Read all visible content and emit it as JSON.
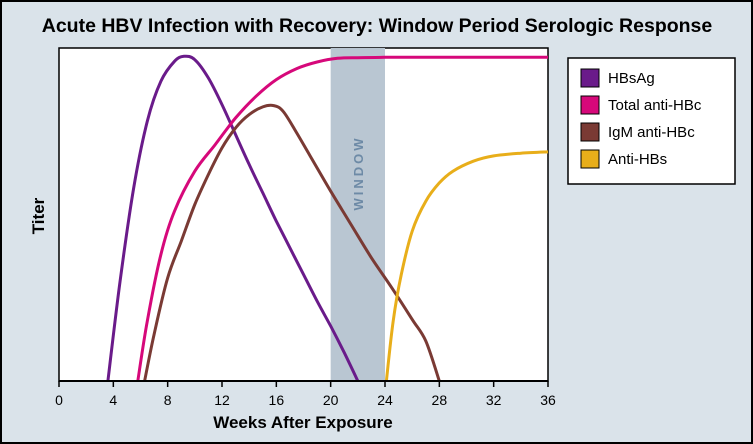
{
  "chart_data": {
    "type": "line",
    "title": "Acute HBV Infection with Recovery: Window Period Serologic Response",
    "xlabel": "Weeks After Exposure",
    "ylabel": "Titer",
    "xlim": [
      0,
      36
    ],
    "ylim": [
      0,
      100
    ],
    "xticks": [
      0,
      4,
      8,
      12,
      16,
      20,
      24,
      28,
      32,
      36
    ],
    "grid": false,
    "legend_position": "top-right",
    "window_band": {
      "label": "WINDOW",
      "x": [
        20,
        24
      ],
      "color": "#b9c6d2"
    },
    "series": [
      {
        "name": "HBsAg",
        "color": "#6a1b8a",
        "points": [
          [
            3.6,
            0
          ],
          [
            4.5,
            30
          ],
          [
            5.5,
            58
          ],
          [
            6.5,
            78
          ],
          [
            7.5,
            90
          ],
          [
            8.5,
            96
          ],
          [
            9.2,
            97.5
          ],
          [
            10,
            96.5
          ],
          [
            11,
            91
          ],
          [
            12,
            83
          ],
          [
            13,
            74
          ],
          [
            14,
            65
          ],
          [
            15,
            56.5
          ],
          [
            16,
            48
          ],
          [
            17,
            40
          ],
          [
            18,
            32
          ],
          [
            19,
            24
          ],
          [
            20,
            16.5
          ],
          [
            21,
            8.5
          ],
          [
            22,
            0
          ]
        ]
      },
      {
        "name": "Total anti-HBc",
        "color": "#d6087a",
        "points": [
          [
            5.8,
            0
          ],
          [
            6.5,
            18
          ],
          [
            7.5,
            38
          ],
          [
            8.5,
            51
          ],
          [
            10,
            63
          ],
          [
            11.5,
            71
          ],
          [
            13,
            79
          ],
          [
            14.5,
            85.5
          ],
          [
            16,
            90.5
          ],
          [
            17.5,
            93.8
          ],
          [
            19,
            95.8
          ],
          [
            20.5,
            96.9
          ],
          [
            22,
            97.1
          ],
          [
            24,
            97.2
          ],
          [
            28,
            97.2
          ],
          [
            32,
            97.2
          ],
          [
            36,
            97.2
          ]
        ]
      },
      {
        "name": "IgM anti-HBc",
        "color": "#7a3a34",
        "points": [
          [
            6.3,
            0
          ],
          [
            7,
            14
          ],
          [
            8,
            31
          ],
          [
            9,
            42
          ],
          [
            10,
            53
          ],
          [
            11,
            62
          ],
          [
            12,
            70
          ],
          [
            13,
            76
          ],
          [
            14,
            80
          ],
          [
            15,
            82.3
          ],
          [
            15.8,
            82.7
          ],
          [
            16.5,
            81
          ],
          [
            17.5,
            74.5
          ],
          [
            18.5,
            67.5
          ],
          [
            20,
            57
          ],
          [
            21.5,
            47
          ],
          [
            23,
            37
          ],
          [
            24.5,
            28
          ],
          [
            26,
            18.5
          ],
          [
            27,
            12
          ],
          [
            28,
            0
          ]
        ]
      },
      {
        "name": "Anti-HBs",
        "color": "#e8ae1a",
        "points": [
          [
            24.1,
            0
          ],
          [
            24.6,
            18
          ],
          [
            25.2,
            32
          ],
          [
            26,
            45
          ],
          [
            27,
            54
          ],
          [
            28,
            59.5
          ],
          [
            29,
            63
          ],
          [
            30.5,
            66
          ],
          [
            32,
            67.6
          ],
          [
            34,
            68.4
          ],
          [
            36,
            68.8
          ]
        ]
      }
    ]
  }
}
